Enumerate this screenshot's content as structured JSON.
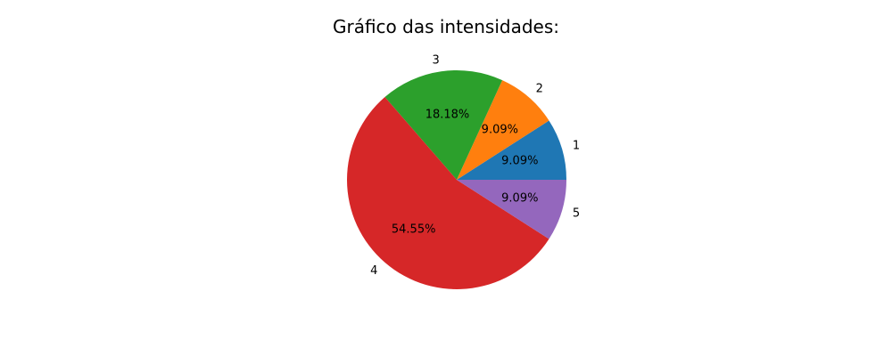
{
  "chart_data": {
    "type": "pie",
    "title": "Gráfico das intensidades:",
    "categories": [
      "1",
      "2",
      "3",
      "4",
      "5"
    ],
    "values": [
      9.09,
      9.09,
      18.18,
      54.55,
      9.09
    ],
    "percent_labels": [
      "9.09%",
      "9.09%",
      "18.18%",
      "54.55%",
      "9.09%"
    ],
    "colors": [
      "#1f77b4",
      "#ff7f0e",
      "#2ca02c",
      "#d62728",
      "#9467bd"
    ],
    "start_angle_deg": 0,
    "direction": "counterclockwise",
    "legend": "none"
  }
}
